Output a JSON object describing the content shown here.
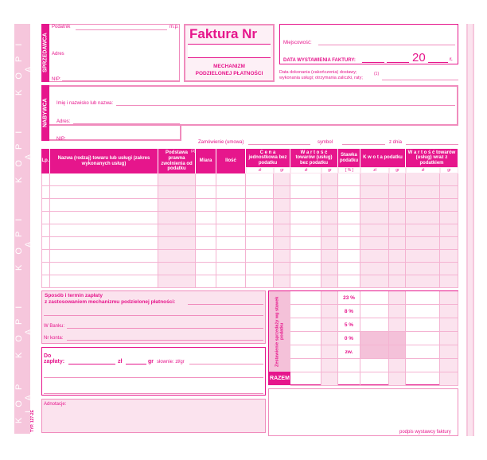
{
  "margin": {
    "copy_label": "K O P I A",
    "form_code": "TYP. 127-2E"
  },
  "seller": {
    "label": "SPRZEDAWCA",
    "taxpayer": "Podatnik",
    "stamp": "m.p.",
    "address": "Adres",
    "nip": "NIP:"
  },
  "invoice": {
    "title": "Faktura Nr",
    "mechanism": "MECHANIZM",
    "mechanism2": "PODZIELONEJ PŁATNOŚCI"
  },
  "place": {
    "locality": "Miejscowość:",
    "issue_date": "DATA WYSTAWIENIA FAKTURY:",
    "year_prefix": "20",
    "year_suffix": "r.",
    "delivery_date": "Data dokonania (zakończenia) dostawy;",
    "delivery_date2": "wykonania usługi; otrzymania zaliczki, raty;",
    "footnote": "(1)"
  },
  "buyer": {
    "label": "NABYWCA",
    "name": "Imię i nazwisko lub nazwa:",
    "address": "Adres:",
    "nip": "NIP:"
  },
  "order": {
    "order": "Zamówienie (umowa)",
    "symbol": "symbol",
    "date": "z dnia"
  },
  "table": {
    "columns": [
      "Lp.",
      "Nazwa (rodzaj) towaru lub usługi (zakres wykonanych usług)",
      "Podstawa prawna zwolnienia od podatku",
      "Miara",
      "Ilość",
      "C e n a jednostkowa bez podatku",
      "W a r t o ś ć towarów (usług) bez podatku",
      "Stawka podatku",
      "K w o t a podatku",
      "W a r t o ś ć towarów (usług) wraz z podatkiem"
    ],
    "footnote2": "(2)",
    "zl": "zł",
    "gr": "gr",
    "percent": "[ % ]"
  },
  "payment": {
    "title": "Sposób i termin zapłaty",
    "subtitle": "z zastosowaniem mechanizmu podzielonej płatności:",
    "bank": "W Banku:",
    "account": "Nr konta:"
  },
  "due": {
    "label1": "Do",
    "label2": "zapłaty:",
    "zl": "zł",
    "gr": "gr",
    "words": "słownie: zł/gr"
  },
  "notes": {
    "label": "Adnotacje:"
  },
  "summary": {
    "label": "Zestawienie sprzedaży wg stawek podatku",
    "rates": [
      "23 %",
      "8 %",
      "5 %",
      "0 %",
      "zw.",
      ""
    ],
    "total": "RAZEM"
  },
  "signature": {
    "label": "podpis wystawcy faktury"
  },
  "colors": {
    "accent": "#e6168c",
    "light": "#fbe3ee",
    "medium": "#f4c1d9"
  }
}
